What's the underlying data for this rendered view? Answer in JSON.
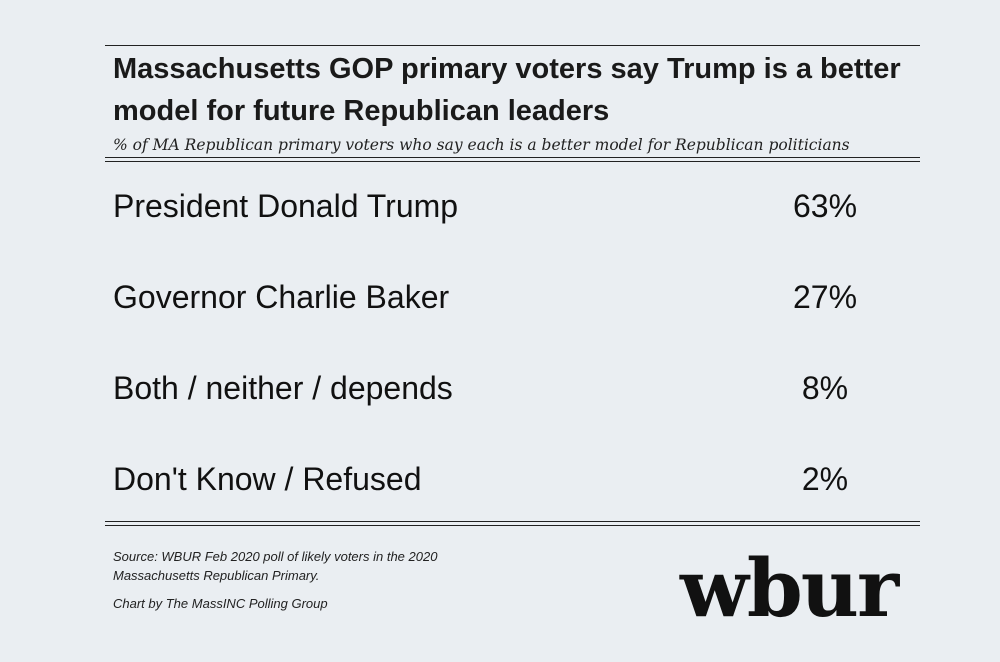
{
  "chart_data": {
    "type": "table",
    "title": "Massachusetts GOP primary voters say Trump is a better model for future Republican leaders",
    "subtitle": "% of MA Republican primary voters who say each is a better model for Republican politicians",
    "categories": [
      "President Donald Trump",
      "Governor Charlie Baker",
      "Both / neither / depends",
      "Don't Know / Refused"
    ],
    "values": [
      63,
      27,
      8,
      2
    ],
    "value_labels": [
      "63%",
      "27%",
      "8%",
      "2%"
    ]
  },
  "footer": {
    "source_line1": "Source: WBUR Feb 2020 poll of likely voters in the 2020",
    "source_line2": "Massachusetts Republican Primary.",
    "credit": "Chart by The MassINC Polling Group"
  },
  "logo": {
    "text": "wbur"
  },
  "colors": {
    "background": "#eaeef2",
    "text": "#111111",
    "rule": "#222222"
  }
}
